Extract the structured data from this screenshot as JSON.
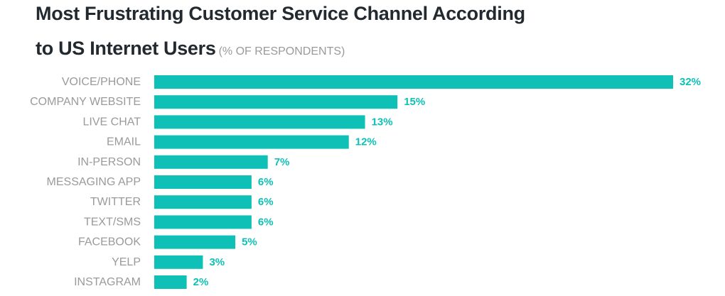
{
  "header": {
    "title_line1": "Most Frustrating Customer Service Channel According",
    "title_line2": "to US Internet Users",
    "subtitle": "(% OF RESPONDENTS)"
  },
  "colors": {
    "bar": "#0ec0b6",
    "value_label": "#0ec0b6",
    "category_label": "#9a9a9a",
    "title": "#222a30"
  },
  "chart_data": {
    "type": "bar",
    "orientation": "horizontal",
    "title": "Most Frustrating Customer Service Channel According to US Internet Users",
    "subtitle": "(% OF RESPONDENTS)",
    "categories": [
      "VOICE/PHONE",
      "COMPANY WEBSITE",
      "LIVE CHAT",
      "EMAIL",
      "IN-PERSON",
      "MESSAGING APP",
      "TWITTER",
      "TEXT/SMS",
      "FACEBOOK",
      "YELP",
      "INSTAGRAM"
    ],
    "values": [
      32,
      15,
      13,
      12,
      7,
      6,
      6,
      6,
      5,
      3,
      2
    ],
    "value_labels": [
      "32%",
      "15%",
      "13%",
      "12%",
      "7%",
      "6%",
      "6%",
      "6%",
      "5%",
      "3%",
      "2%"
    ],
    "xlim": [
      0,
      32
    ],
    "grid": false,
    "legend": "none"
  }
}
